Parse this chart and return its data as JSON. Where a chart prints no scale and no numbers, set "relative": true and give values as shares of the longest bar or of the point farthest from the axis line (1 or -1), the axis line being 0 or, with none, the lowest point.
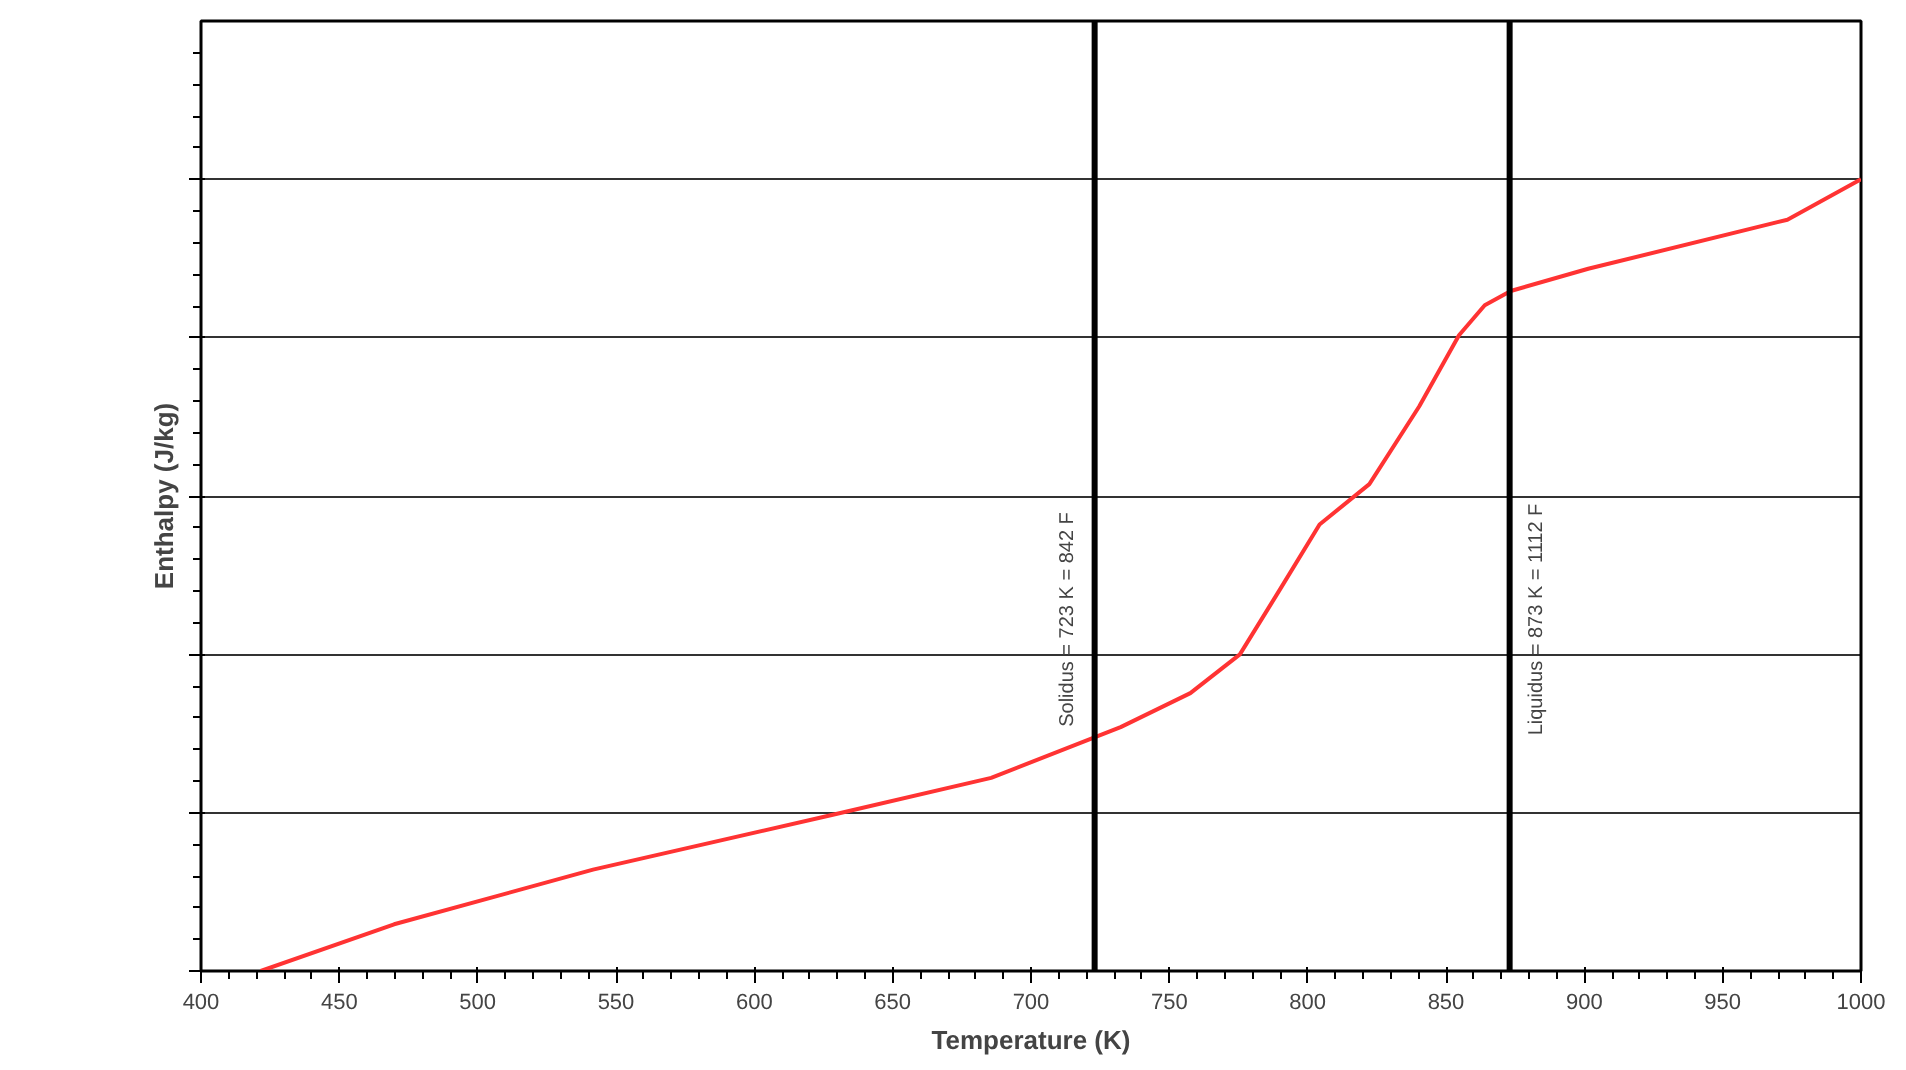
{
  "chart_data": {
    "type": "line",
    "relative": true,
    "xlabel": "Temperature (K)",
    "ylabel": "Enthalpy (J/kg)",
    "xlim": [
      400,
      1000
    ],
    "xticks": [
      400,
      450,
      500,
      550,
      600,
      650,
      700,
      750,
      800,
      850,
      900,
      950,
      1000
    ],
    "grid": "y",
    "marker": "none",
    "line_style": "solid",
    "series": [
      {
        "color": "#ff3333",
        "x": [
          421.6,
          469.8,
          541.7,
          628,
          685.6,
          732.4,
          757.6,
          775.5,
          790,
          804.3,
          822.3,
          840.3,
          854.7,
          864,
          873.4,
          901.4,
          973.4,
          1000
        ],
        "values": [
          0,
          0.059,
          0.128,
          0.197,
          0.244,
          0.308,
          0.351,
          0.4,
          0.482,
          0.564,
          0.615,
          0.713,
          0.803,
          0.841,
          0.859,
          0.887,
          0.949,
          1.0
        ]
      }
    ],
    "ref_lines": [
      {
        "axis": "x",
        "value": 723,
        "label": "Solidus = 723 K = 842 F",
        "color": "#000000"
      },
      {
        "axis": "x",
        "value": 873,
        "label": "Liquidus = 873 K = 1112 F",
        "color": "#000000"
      }
    ]
  }
}
